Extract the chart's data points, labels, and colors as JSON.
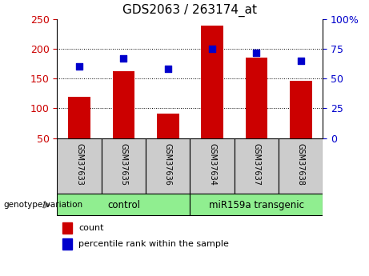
{
  "title": "GDS2063 / 263174_at",
  "samples": [
    "GSM37633",
    "GSM37635",
    "GSM37636",
    "GSM37634",
    "GSM37637",
    "GSM37638"
  ],
  "counts": [
    120,
    163,
    91,
    240,
    186,
    147
  ],
  "percentiles": [
    60,
    67,
    58,
    75,
    72,
    65
  ],
  "groups": [
    {
      "label": "control",
      "color": "#90ee90",
      "start": 0,
      "end": 2
    },
    {
      "label": "miR159a transgenic",
      "color": "#90ee90",
      "start": 3,
      "end": 5
    }
  ],
  "bar_color": "#cc0000",
  "dot_color": "#0000cc",
  "ylim_left": [
    50,
    250
  ],
  "ylim_right": [
    0,
    100
  ],
  "yticks_left": [
    50,
    100,
    150,
    200,
    250
  ],
  "yticks_right": [
    0,
    25,
    50,
    75,
    100
  ],
  "ytick_labels_right": [
    "0",
    "25",
    "50",
    "75",
    "100%"
  ],
  "grid_values": [
    100,
    150,
    200
  ],
  "tick_label_color_left": "#cc0000",
  "tick_label_color_right": "#0000cc",
  "legend_count_label": "count",
  "legend_pct_label": "percentile rank within the sample",
  "group_row_label": "genotype/variation",
  "bar_width": 0.5,
  "sample_box_color": "#cccccc",
  "figsize": [
    4.61,
    3.45
  ],
  "dpi": 100
}
